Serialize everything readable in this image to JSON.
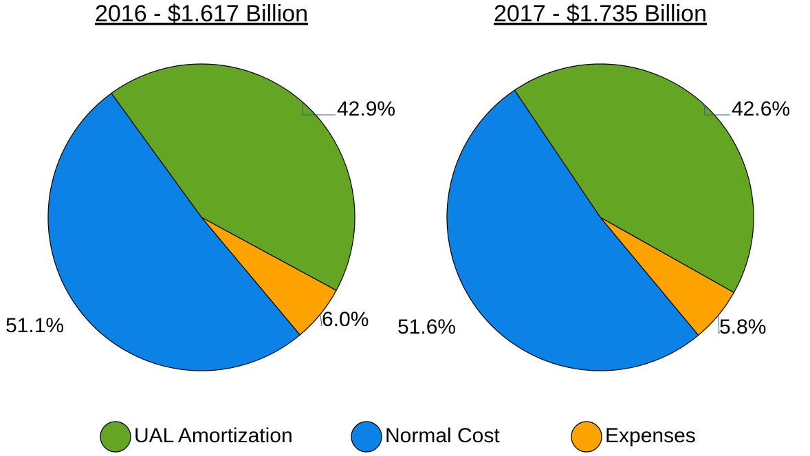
{
  "chart_data": [
    {
      "type": "pie",
      "title": "2016 - $1.617 Billion",
      "values": [
        42.9,
        51.1,
        6.0
      ],
      "value_labels": [
        "42.9%",
        "51.1%",
        "6.0%"
      ]
    },
    {
      "type": "pie",
      "title": "2017 - $1.735 Billion",
      "values": [
        42.6,
        51.6,
        5.8
      ],
      "value_labels": [
        "42.6%",
        "51.6%",
        "5.8%"
      ]
    }
  ],
  "legend": {
    "labels": [
      "UAL Amortization",
      "Normal Cost",
      "Expenses"
    ],
    "colors": [
      "#65a524",
      "#0a82e6",
      "#fda300"
    ]
  }
}
